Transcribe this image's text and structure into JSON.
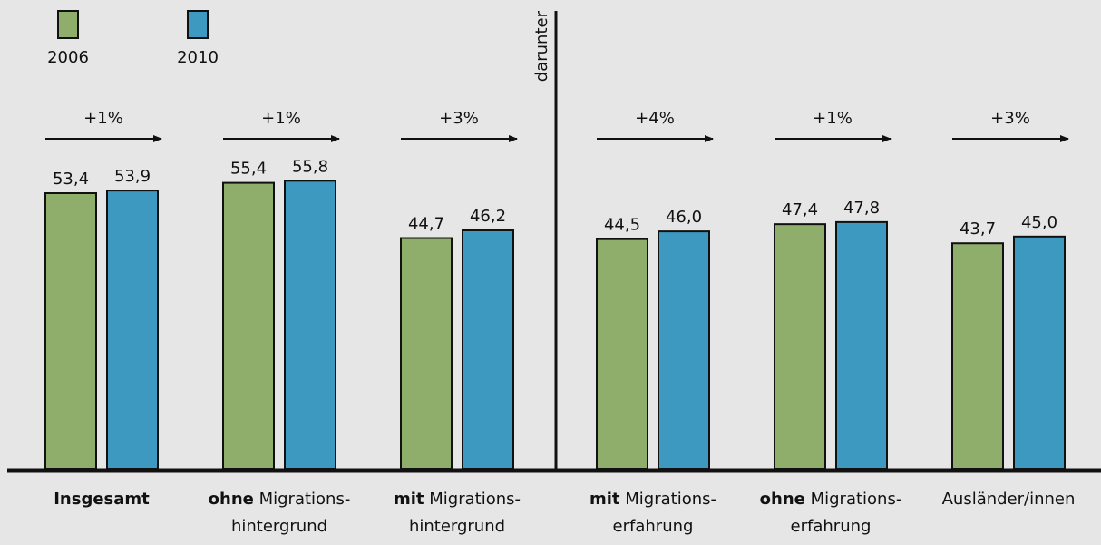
{
  "chart_data": {
    "type": "bar",
    "ylim": [
      0,
      62
    ],
    "legend": [
      {
        "label": "2006",
        "color": "#8fad6b"
      },
      {
        "label": "2010",
        "color": "#3e99c1"
      }
    ],
    "divider_label": "darunter",
    "categories": [
      {
        "bold": "Insgesamt",
        "rest": "",
        "line2": ""
      },
      {
        "bold": "ohne",
        "rest": " Migrations-",
        "line2": "hintergrund"
      },
      {
        "bold": "mit",
        "rest": " Migrations-",
        "line2": "hintergrund"
      },
      {
        "bold": "mit",
        "rest": " Migrations-",
        "line2": "erfahrung"
      },
      {
        "bold": "ohne",
        "rest": " Migrations-",
        "line2": "erfahrung"
      },
      {
        "bold": "",
        "rest": "Ausländer/innen",
        "line2": ""
      }
    ],
    "series": [
      {
        "name": "2006",
        "values": [
          53.4,
          55.4,
          44.7,
          44.5,
          47.4,
          43.7
        ],
        "labels": [
          "53,4",
          "55,4",
          "44,7",
          "44,5",
          "47,4",
          "43,7"
        ]
      },
      {
        "name": "2010",
        "values": [
          53.9,
          55.8,
          46.2,
          46.0,
          47.8,
          45.0
        ],
        "labels": [
          "53,9",
          "55,8",
          "46,2",
          "46,0",
          "47,8",
          "45,0"
        ]
      }
    ],
    "changes": [
      "+1%",
      "+1%",
      "+3%",
      "+4%",
      "+1%",
      "+3%"
    ]
  }
}
